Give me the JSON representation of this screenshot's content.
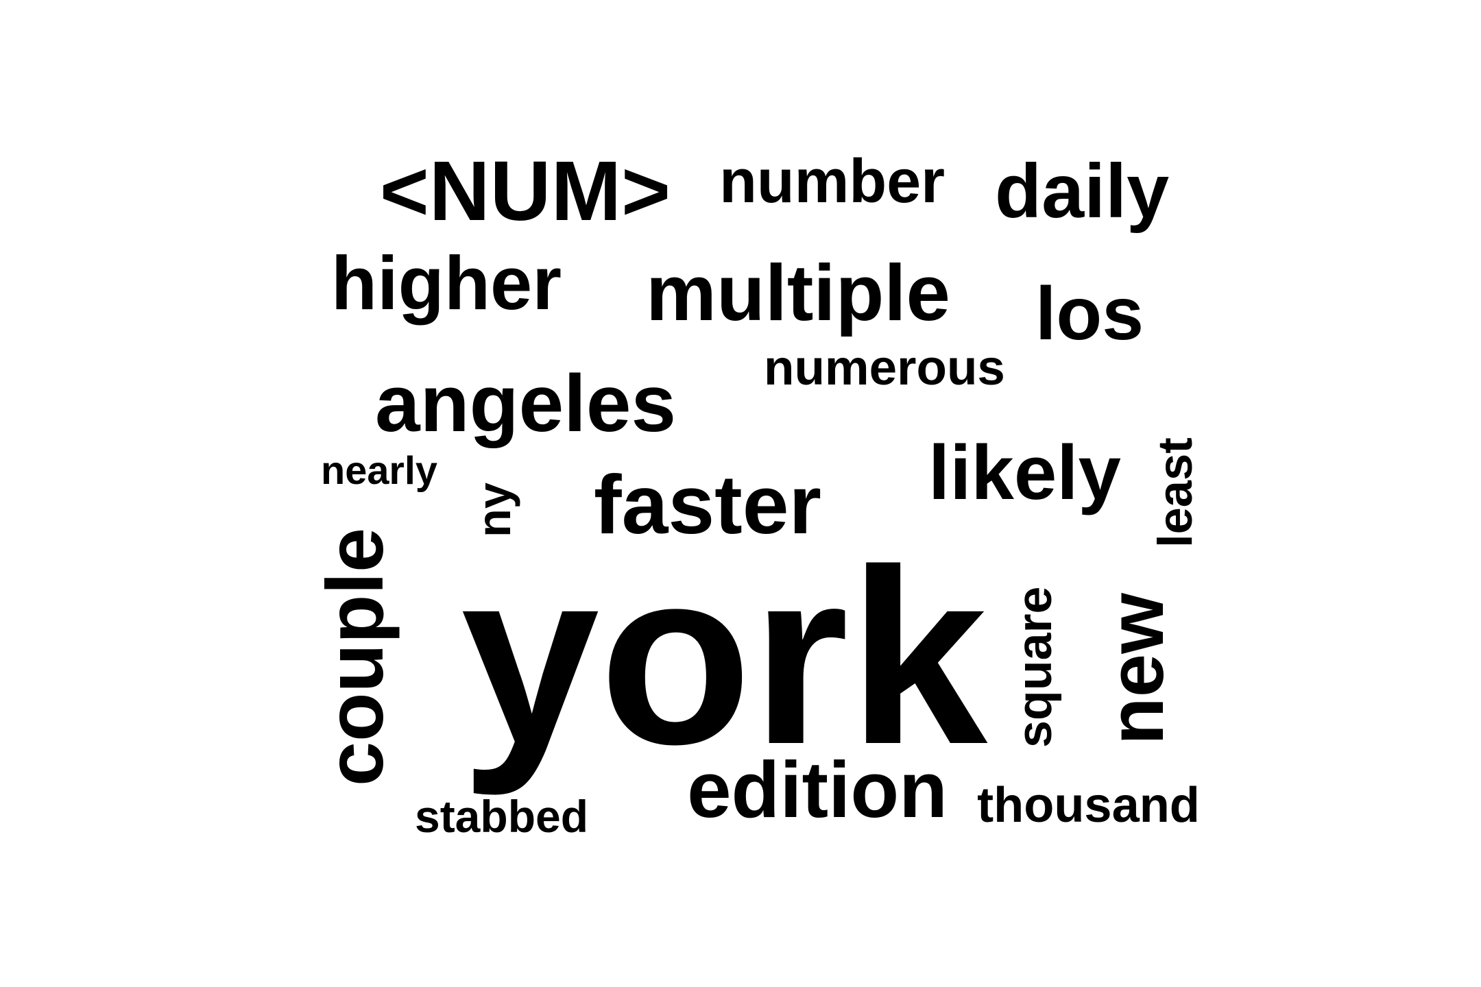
{
  "word_cloud": {
    "color": "#000000",
    "background": "#ffffff",
    "words": [
      {
        "text": "york",
        "orientation": "horizontal"
      },
      {
        "text": "<NUM>",
        "orientation": "horizontal"
      },
      {
        "text": "number",
        "orientation": "horizontal"
      },
      {
        "text": "daily",
        "orientation": "horizontal"
      },
      {
        "text": "higher",
        "orientation": "horizontal"
      },
      {
        "text": "multiple",
        "orientation": "horizontal"
      },
      {
        "text": "los",
        "orientation": "horizontal"
      },
      {
        "text": "numerous",
        "orientation": "horizontal"
      },
      {
        "text": "angeles",
        "orientation": "horizontal"
      },
      {
        "text": "nearly",
        "orientation": "horizontal"
      },
      {
        "text": "ny",
        "orientation": "vertical"
      },
      {
        "text": "faster",
        "orientation": "horizontal"
      },
      {
        "text": "likely",
        "orientation": "horizontal"
      },
      {
        "text": "least",
        "orientation": "vertical"
      },
      {
        "text": "couple",
        "orientation": "vertical"
      },
      {
        "text": "square",
        "orientation": "vertical"
      },
      {
        "text": "new",
        "orientation": "vertical"
      },
      {
        "text": "edition",
        "orientation": "horizontal"
      },
      {
        "text": "thousand",
        "orientation": "horizontal"
      },
      {
        "text": "stabbed",
        "orientation": "horizontal"
      }
    ]
  }
}
